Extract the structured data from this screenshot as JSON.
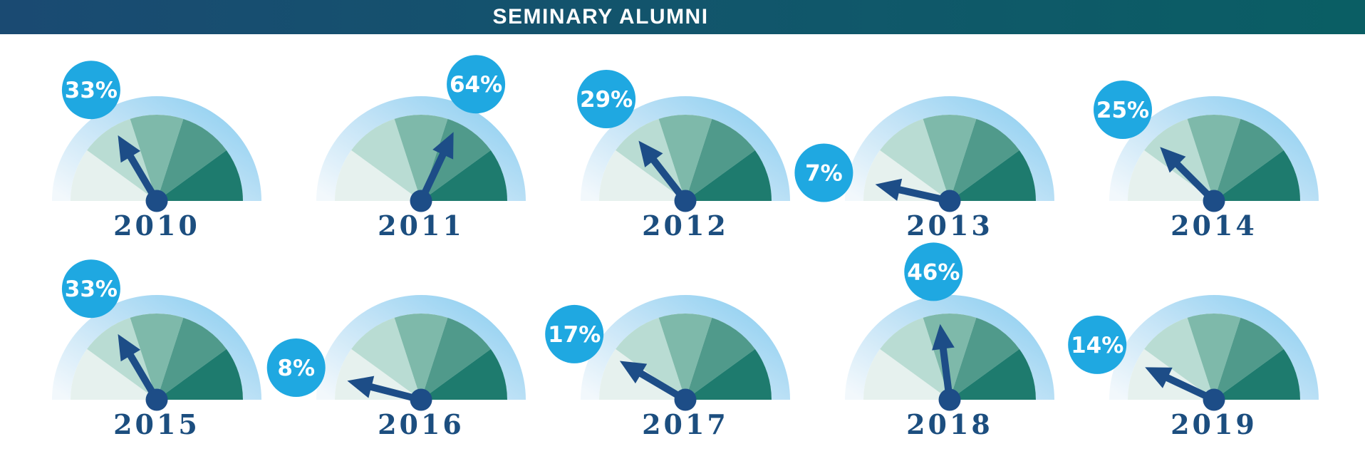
{
  "header": {
    "title": "SEMINARY ALUMNI",
    "bg_gradient": [
      "#1a4a72",
      "#0a5e64"
    ],
    "text_color": "#ffffff"
  },
  "chart_data": {
    "type": "gauge",
    "title": "SEMINARY ALUMNI",
    "unit": "%",
    "scale": {
      "min": 0,
      "max": 100,
      "start_angle_deg": 180,
      "end_angle_deg": 0
    },
    "segments": {
      "count": 5,
      "sweep_deg": 36,
      "colors": [
        "#e6f1ee",
        "#b9dcd3",
        "#7eb9aa",
        "#509a8b",
        "#1e7b6e"
      ]
    },
    "ring_gradient": [
      "#f2f8fc",
      "#c0e2f6",
      "#89cdf0"
    ],
    "needle_color": "#1d4d87",
    "hub_color": "#1d4d87",
    "badge": {
      "fill": "#1fa8e1",
      "text_color": "#ffffff"
    },
    "year_label_color": "#1c4e7f",
    "layout": {
      "rows": 2,
      "per_row": 5,
      "legend": "none",
      "grid": false
    },
    "gauges": [
      {
        "year": "2010",
        "value": 33,
        "label": "33%"
      },
      {
        "year": "2011",
        "value": 64,
        "label": "64%"
      },
      {
        "year": "2012",
        "value": 29,
        "label": "29%"
      },
      {
        "year": "2013",
        "value": 7,
        "label": "7%"
      },
      {
        "year": "2014",
        "value": 25,
        "label": "25%"
      },
      {
        "year": "2015",
        "value": 33,
        "label": "33%"
      },
      {
        "year": "2016",
        "value": 8,
        "label": "8%"
      },
      {
        "year": "2017",
        "value": 17,
        "label": "17%"
      },
      {
        "year": "2018",
        "value": 46,
        "label": "46%"
      },
      {
        "year": "2019",
        "value": 14,
        "label": "14%"
      }
    ]
  }
}
